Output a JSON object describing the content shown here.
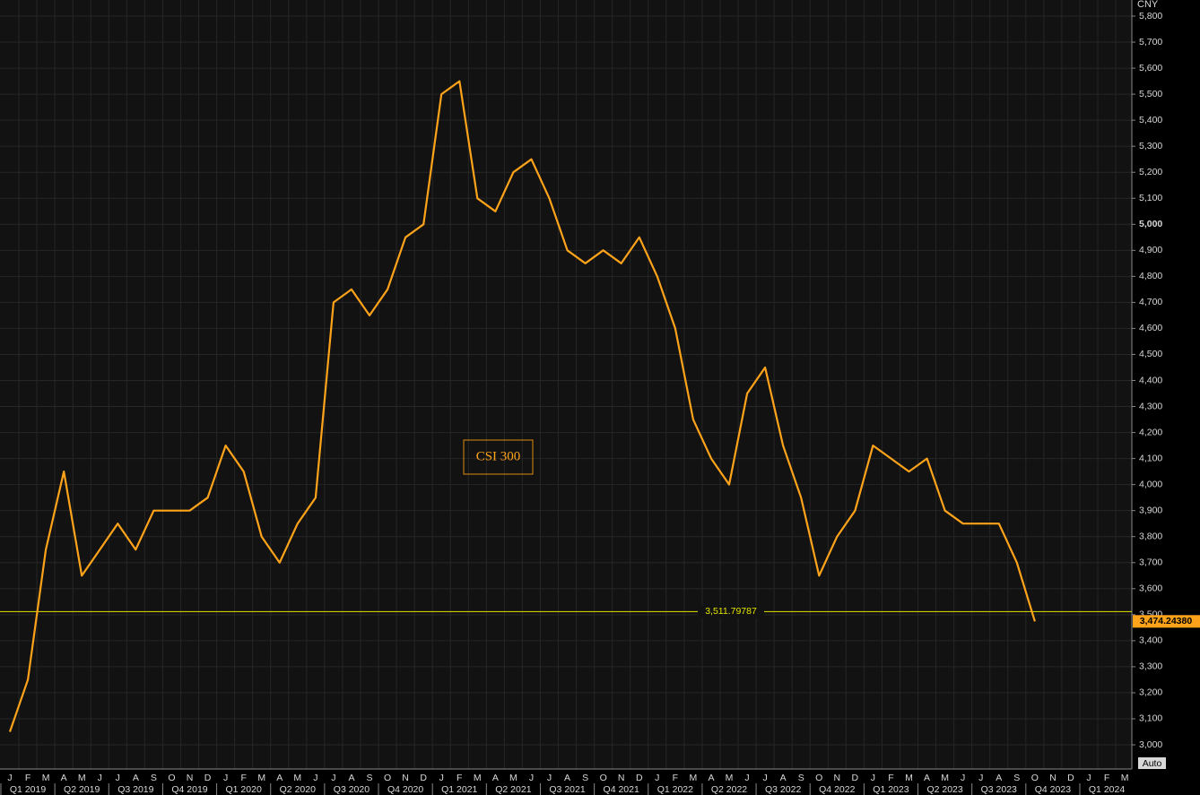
{
  "chart_data": {
    "type": "line",
    "title": "CSI 300",
    "unit": "CNY",
    "button": "Auto",
    "categories": [
      "J",
      "F",
      "M",
      "A",
      "M",
      "J",
      "J",
      "A",
      "S",
      "O",
      "N",
      "D",
      "J",
      "F",
      "M",
      "A",
      "M",
      "J",
      "J",
      "A",
      "S",
      "O",
      "N",
      "D",
      "J",
      "F",
      "M",
      "A",
      "M",
      "J",
      "J",
      "A",
      "S",
      "O",
      "N",
      "D",
      "J",
      "F",
      "M",
      "A",
      "M",
      "J",
      "J",
      "A",
      "S",
      "O",
      "N",
      "D",
      "J",
      "F",
      "M",
      "A",
      "M",
      "J",
      "J",
      "A",
      "S",
      "O",
      "N",
      "D",
      "J",
      "F",
      "M"
    ],
    "quarters": [
      "Q1 2019",
      "Q2 2019",
      "Q3 2019",
      "Q4 2019",
      "Q1 2020",
      "Q2 2020",
      "Q3 2020",
      "Q4 2020",
      "Q1 2021",
      "Q2 2021",
      "Q3 2021",
      "Q4 2021",
      "Q1 2022",
      "Q2 2022",
      "Q3 2022",
      "Q4 2022",
      "Q1 2023",
      "Q2 2023",
      "Q3 2023",
      "Q4 2023",
      "Q1 2024"
    ],
    "series": [
      {
        "name": "CSI 300",
        "color": "#ffa31a",
        "values": [
          3050,
          3250,
          3750,
          4050,
          3650,
          3750,
          3850,
          3750,
          3900,
          3900,
          3900,
          3950,
          4150,
          4050,
          3800,
          3700,
          3850,
          3950,
          4700,
          4750,
          4650,
          4750,
          4950,
          5000,
          5500,
          5550,
          5100,
          5050,
          5200,
          5250,
          5100,
          4900,
          4850,
          4900,
          4850,
          4950,
          4800,
          4600,
          4250,
          4100,
          4000,
          4350,
          4450,
          4150,
          3950,
          3650,
          3800,
          3900,
          4150,
          4100,
          4050,
          4100,
          3900,
          3850,
          3850,
          3850,
          3700,
          3474.2438,
          null,
          null,
          null,
          null,
          null
        ]
      }
    ],
    "last_price": {
      "value": 3474.2438,
      "label": "3,474.24380"
    },
    "reference_line": {
      "value": 3511.79787,
      "label": "3,511.79787",
      "color": "#e6e600"
    },
    "ylim": [
      2907,
      5862
    ],
    "yticks": [
      {
        "value": 3000,
        "label": "3,000"
      },
      {
        "value": 3100,
        "label": "3,100"
      },
      {
        "value": 3200,
        "label": "3,200"
      },
      {
        "value": 3300,
        "label": "3,300"
      },
      {
        "value": 3400,
        "label": "3,400"
      },
      {
        "value": 3500,
        "label": "3,500"
      },
      {
        "value": 3600,
        "label": "3,600"
      },
      {
        "value": 3700,
        "label": "3,700"
      },
      {
        "value": 3800,
        "label": "3,800"
      },
      {
        "value": 3900,
        "label": "3,900"
      },
      {
        "value": 4000,
        "label": "4,000"
      },
      {
        "value": 4100,
        "label": "4,100"
      },
      {
        "value": 4200,
        "label": "4,200"
      },
      {
        "value": 4300,
        "label": "4,300"
      },
      {
        "value": 4400,
        "label": "4,400"
      },
      {
        "value": 4500,
        "label": "4,500"
      },
      {
        "value": 4600,
        "label": "4,600"
      },
      {
        "value": 4700,
        "label": "4,700"
      },
      {
        "value": 4800,
        "label": "4,800"
      },
      {
        "value": 4900,
        "label": "4,900"
      },
      {
        "value": 5000,
        "label": "5,000"
      },
      {
        "value": 5100,
        "label": "5,100"
      },
      {
        "value": 5200,
        "label": "5,200"
      },
      {
        "value": 5300,
        "label": "5,300"
      },
      {
        "value": 5400,
        "label": "5,400"
      },
      {
        "value": 5500,
        "label": "5,500"
      },
      {
        "value": 5600,
        "label": "5,600"
      },
      {
        "value": 5700,
        "label": "5,700"
      },
      {
        "value": 5800,
        "label": "5,800"
      }
    ],
    "grid": true
  }
}
